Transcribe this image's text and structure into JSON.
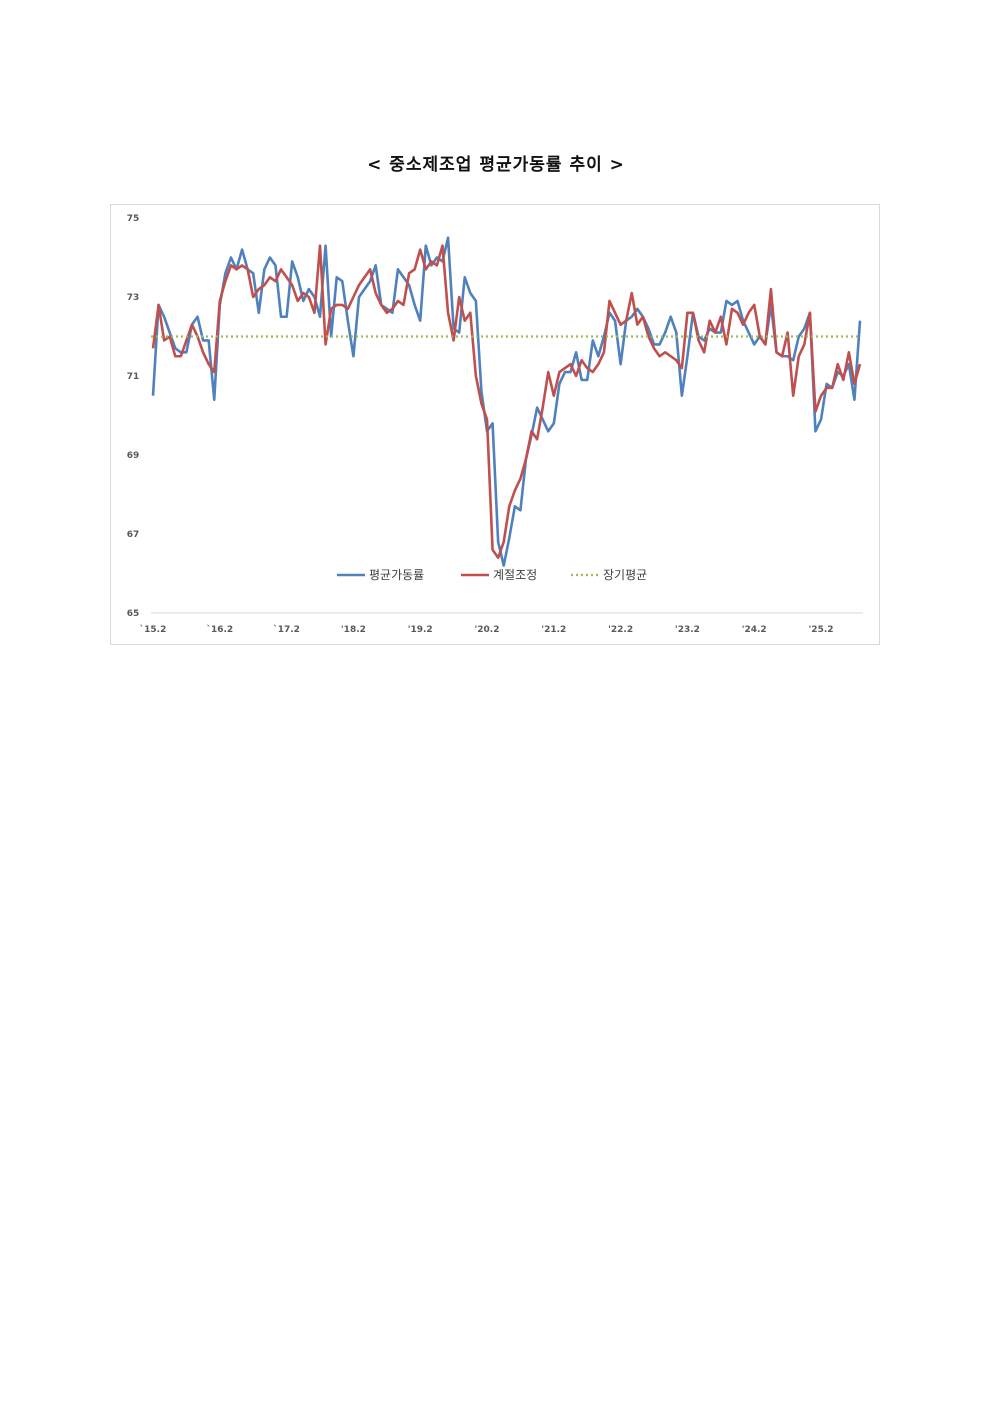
{
  "page": {
    "title": "< 중소제조업 평균가동률 추이 >"
  },
  "chart_data": {
    "type": "line",
    "title": "< 중소제조업 평균가동률 추이 >",
    "xlabel": "",
    "ylabel": "",
    "ylim": [
      65,
      75
    ],
    "yticks": [
      65,
      67,
      69,
      71,
      73,
      75
    ],
    "x_tick_labels": [
      "`15.2",
      "`16.2",
      "`17.2",
      "'18.2",
      "'19.2",
      "'20.2",
      "'21.2",
      "'22.2",
      "'23.2",
      "'24.2",
      "'25.2"
    ],
    "grid": "horizontal baseline only",
    "legend_position": "bottom-center inside plot",
    "colors": {
      "평균가동률": "#4f81bd",
      "계절조정": "#c0504d",
      "장기평균": "#9bbb59"
    },
    "series": [
      {
        "name": "평균가동률",
        "values": [
          70.5,
          72.8,
          72.5,
          72.1,
          71.7,
          71.6,
          71.6,
          72.3,
          72.5,
          71.9,
          71.9,
          70.4,
          72.8,
          73.6,
          74.0,
          73.7,
          74.2,
          73.7,
          73.6,
          72.6,
          73.7,
          74.0,
          73.8,
          72.5,
          72.5,
          73.9,
          73.5,
          72.9,
          73.2,
          73.0,
          72.5,
          74.3,
          72.0,
          73.5,
          73.4,
          72.4,
          71.5,
          73.0,
          73.2,
          73.4,
          73.8,
          72.8,
          72.7,
          72.6,
          73.7,
          73.5,
          73.3,
          72.8,
          72.4,
          74.3,
          73.8,
          74.0,
          73.9,
          74.5,
          72.2,
          72.1,
          73.5,
          73.1,
          72.9,
          70.6,
          69.6,
          69.8,
          66.8,
          66.2,
          66.9,
          67.7,
          67.6,
          68.9,
          69.5,
          70.2,
          69.9,
          69.6,
          69.8,
          70.8,
          71.1,
          71.1,
          71.6,
          70.9,
          70.9,
          71.9,
          71.5,
          72.0,
          72.6,
          72.4,
          71.3,
          72.4,
          72.5,
          72.7,
          72.5,
          72.2,
          71.8,
          71.8,
          72.1,
          72.5,
          72.1,
          70.5,
          71.5,
          72.6,
          72.0,
          71.9,
          72.2,
          72.1,
          72.1,
          72.9,
          72.8,
          72.9,
          72.4,
          72.1,
          71.8,
          72.0,
          71.8,
          72.8,
          71.6,
          71.5,
          71.5,
          71.4,
          72.0,
          72.2,
          72.6,
          69.6,
          69.9,
          70.8,
          70.7,
          71.1,
          71.0,
          71.3,
          70.4,
          72.4
        ]
      },
      {
        "name": "계절조정",
        "values": [
          71.7,
          72.8,
          71.9,
          72.0,
          71.5,
          71.5,
          71.9,
          72.3,
          72.0,
          71.6,
          71.3,
          71.1,
          72.9,
          73.4,
          73.8,
          73.7,
          73.8,
          73.7,
          73.0,
          73.2,
          73.3,
          73.5,
          73.4,
          73.7,
          73.5,
          73.3,
          72.9,
          73.1,
          73.0,
          72.6,
          74.3,
          71.8,
          72.7,
          72.8,
          72.8,
          72.7,
          73.0,
          73.3,
          73.5,
          73.7,
          73.1,
          72.8,
          72.6,
          72.7,
          72.9,
          72.8,
          73.6,
          73.7,
          74.2,
          73.7,
          73.9,
          73.8,
          74.3,
          72.6,
          71.9,
          73.0,
          72.4,
          72.6,
          71.0,
          70.3,
          69.9,
          66.6,
          66.4,
          66.8,
          67.7,
          68.1,
          68.4,
          68.9,
          69.6,
          69.4,
          70.2,
          71.1,
          70.5,
          71.1,
          71.2,
          71.3,
          71.0,
          71.4,
          71.2,
          71.1,
          71.3,
          71.6,
          72.9,
          72.6,
          72.3,
          72.4,
          73.1,
          72.3,
          72.5,
          72.0,
          71.7,
          71.5,
          71.6,
          71.5,
          71.4,
          71.2,
          72.6,
          72.6,
          71.9,
          71.6,
          72.4,
          72.1,
          72.5,
          71.8,
          72.7,
          72.6,
          72.3,
          72.6,
          72.8,
          72.0,
          71.8,
          73.2,
          71.6,
          71.5,
          72.1,
          70.5,
          71.5,
          71.8,
          72.6,
          70.1,
          70.5,
          70.7,
          70.7,
          71.3,
          70.9,
          71.6,
          70.8,
          71.3
        ]
      },
      {
        "name": "장기평균",
        "values": [
          72.0,
          72.0
        ]
      }
    ]
  }
}
